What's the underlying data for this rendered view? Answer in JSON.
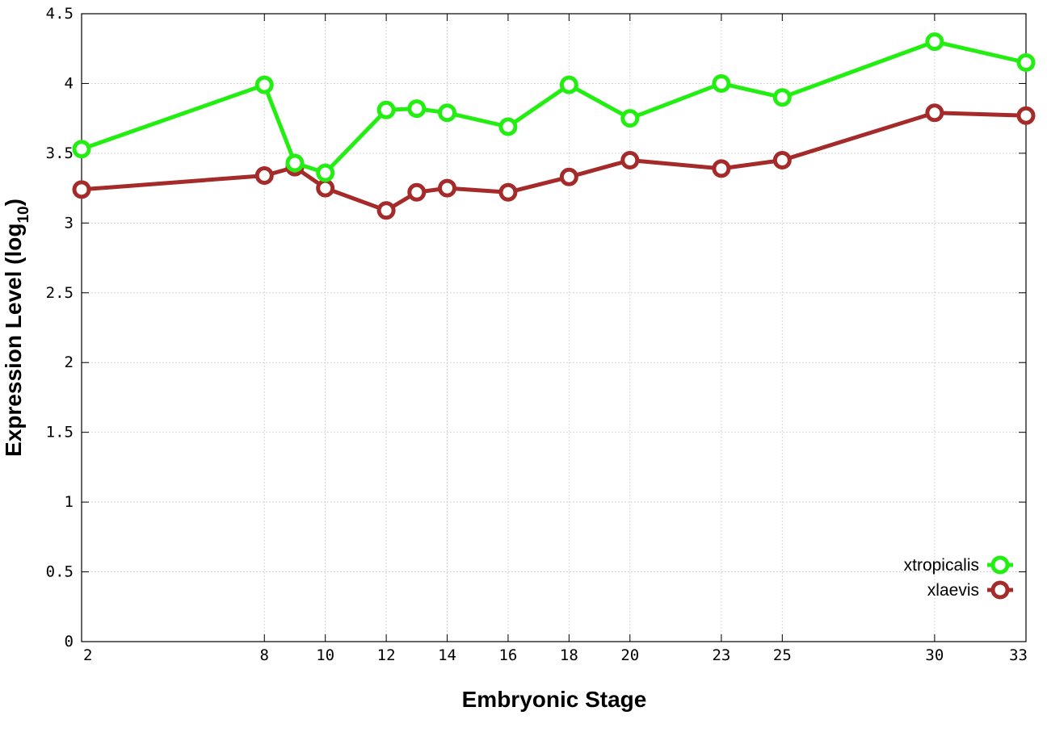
{
  "chart_data": {
    "type": "line",
    "xlabel": "Embryonic Stage",
    "ylabel_main": "Expression Level (log",
    "ylabel_sub": "10",
    "ylabel_close": ")",
    "x_ticks": [
      2,
      8,
      10,
      12,
      14,
      16,
      18,
      20,
      23,
      25,
      30,
      33
    ],
    "x_tick_labels": [
      "2",
      "8",
      "10",
      "12",
      "14",
      "16",
      "18",
      "20",
      "23",
      "25",
      "30",
      "33"
    ],
    "y_ticks": [
      0,
      0.5,
      1,
      1.5,
      2,
      2.5,
      3,
      3.5,
      4,
      4.5
    ],
    "y_tick_labels": [
      "0",
      "0.5",
      "1",
      "1.5",
      "2",
      "2.5",
      "3",
      "3.5",
      "4",
      "4.5"
    ],
    "xlim": [
      2,
      33
    ],
    "ylim": [
      0,
      4.5
    ],
    "grid": true,
    "legend_position": "bottom-right",
    "series": [
      {
        "name": "xtropicalis",
        "color": "#22ee11",
        "x": [
          2,
          8,
          9,
          10,
          12,
          13,
          14,
          16,
          18,
          20,
          23,
          25,
          30,
          33
        ],
        "values": [
          3.53,
          3.99,
          3.43,
          3.36,
          3.81,
          3.82,
          3.79,
          3.69,
          3.99,
          3.75,
          4.0,
          3.9,
          4.3,
          4.15
        ]
      },
      {
        "name": "xlaevis",
        "color": "#a52a2a",
        "x": [
          2,
          8,
          9,
          10,
          12,
          13,
          14,
          16,
          18,
          20,
          23,
          25,
          30,
          33
        ],
        "values": [
          3.24,
          3.34,
          3.4,
          3.25,
          3.09,
          3.22,
          3.25,
          3.22,
          3.33,
          3.45,
          3.39,
          3.45,
          3.79,
          3.77
        ]
      }
    ]
  }
}
